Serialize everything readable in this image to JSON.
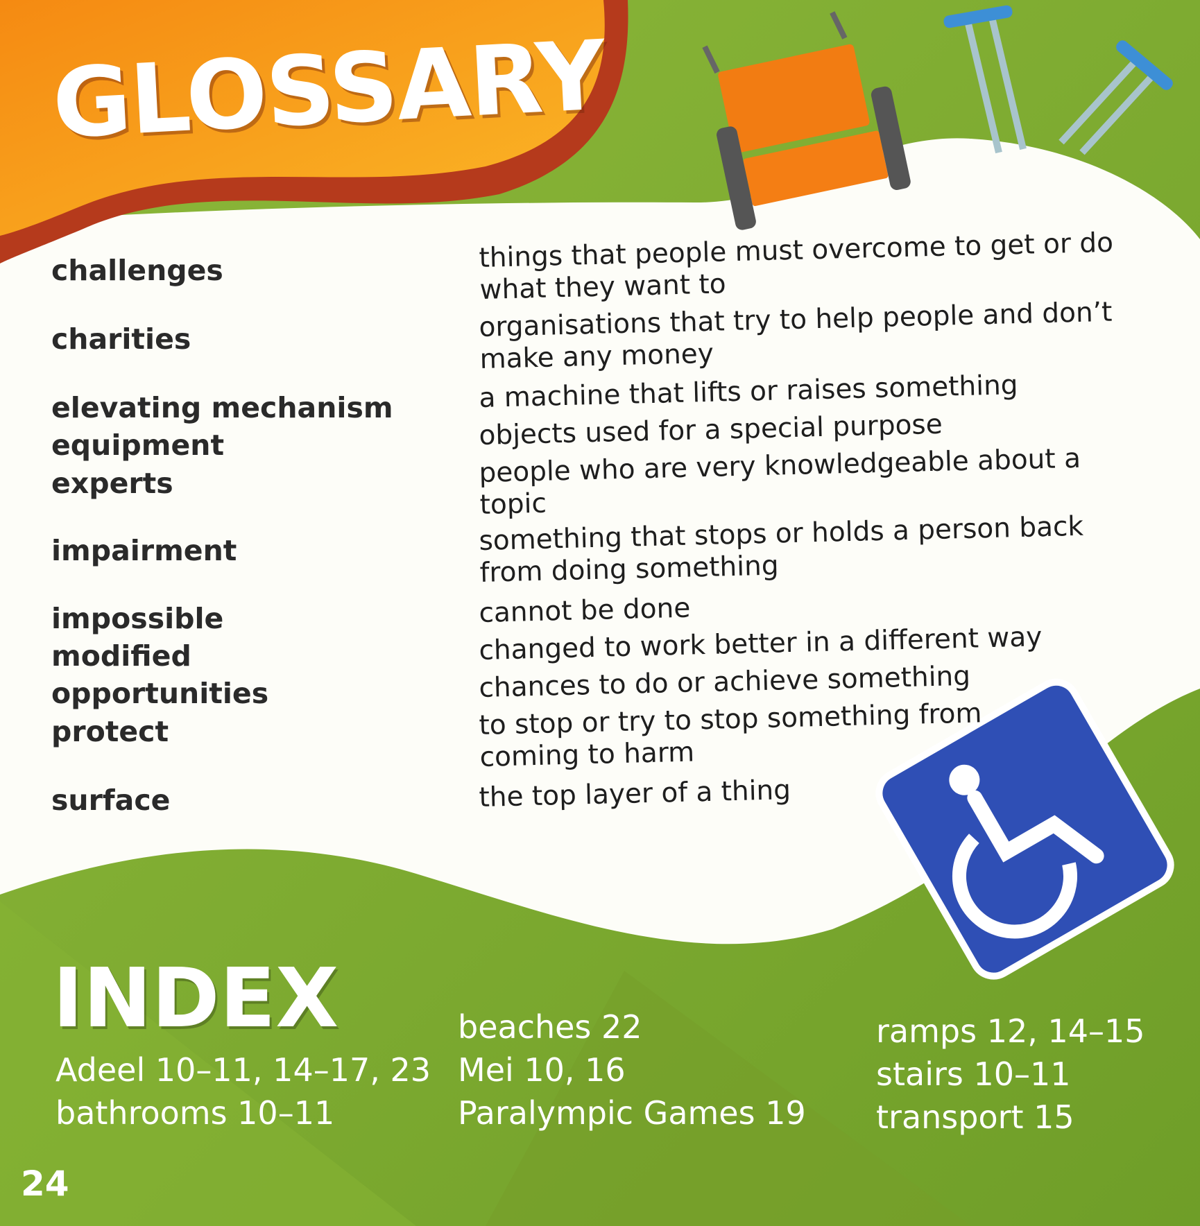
{
  "glossary": {
    "title": "GLOSSARY",
    "entries": [
      {
        "term": "challenges",
        "definition": "things that people must overcome to get or do what they want to"
      },
      {
        "term": "charities",
        "definition": "organisations that try to help people and don’t make any money"
      },
      {
        "term": "elevating mechanism",
        "definition": "a machine that lifts or raises something"
      },
      {
        "term": "equipment",
        "definition": "objects used for a special purpose"
      },
      {
        "term": "experts",
        "definition": "people who are very knowledgeable about a topic"
      },
      {
        "term": "impairment",
        "definition": "something that stops or holds a person back from doing something"
      },
      {
        "term": "impossible",
        "definition": "cannot be done"
      },
      {
        "term": "modified",
        "definition": "changed to work better in a different way"
      },
      {
        "term": "opportunities",
        "definition": "chances to do or achieve something"
      },
      {
        "term": "protect",
        "definition": "to stop or try to stop something from coming to harm"
      },
      {
        "term": "surface",
        "definition": "the top layer of a thing"
      }
    ]
  },
  "index": {
    "title": "INDEX",
    "entries": [
      "Adeel 10–11, 14–17, 23",
      "bathrooms 10–11",
      "beaches 22",
      "Mei 10, 16",
      "Paralympic Games 19",
      "ramps 12, 14–15",
      "stairs 10–11",
      "transport 15"
    ]
  },
  "page_number": "24",
  "colors": {
    "green": "#7faa2e",
    "orange": "#f7a21b",
    "dark_red": "#b53a1c",
    "sign_blue": "#2f4fb5",
    "white": "#ffffff"
  },
  "icons": [
    "wheelchair-icon",
    "crutches-icon",
    "accessibility-sign-icon"
  ]
}
